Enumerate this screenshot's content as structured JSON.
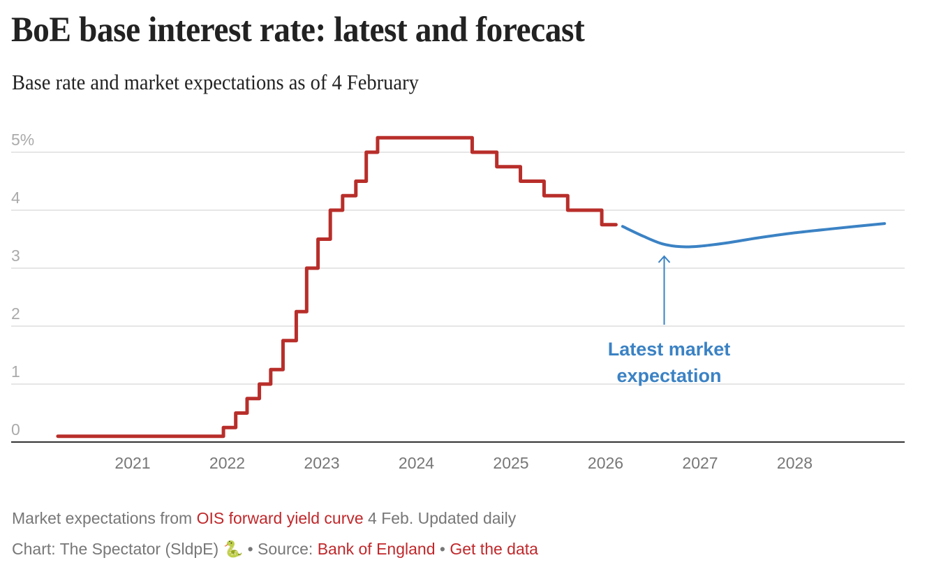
{
  "header": {
    "title": "BoE base interest rate: latest and forecast",
    "subtitle": "Base rate and market expectations as of 4 February"
  },
  "chart_data": {
    "type": "line",
    "title": "BoE base interest rate: latest and forecast",
    "subtitle": "Base rate and market expectations as of 4 February",
    "xlabel": "",
    "ylabel": "",
    "ylim": [
      0,
      5
    ],
    "xlim": [
      2020.0,
      2029.0
    ],
    "y_ticks": [
      {
        "value": 0,
        "label": "0"
      },
      {
        "value": 1,
        "label": "1"
      },
      {
        "value": 2,
        "label": "2"
      },
      {
        "value": 3,
        "label": "3"
      },
      {
        "value": 4,
        "label": "4"
      },
      {
        "value": 5,
        "label": "5%"
      }
    ],
    "x_ticks": [
      {
        "value": 2021,
        "label": "2021"
      },
      {
        "value": 2022,
        "label": "2022"
      },
      {
        "value": 2023,
        "label": "2023"
      },
      {
        "value": 2024,
        "label": "2024"
      },
      {
        "value": 2025,
        "label": "2025"
      },
      {
        "value": 2026,
        "label": "2026"
      },
      {
        "value": 2027,
        "label": "2027"
      },
      {
        "value": 2028,
        "label": "2028"
      }
    ],
    "grid": true,
    "legend": "none",
    "series": [
      {
        "name": "Base rate",
        "style": "step",
        "color": "#b82e2a",
        "points": [
          {
            "x": 2020.21,
            "y": 0.1
          },
          {
            "x": 2021.96,
            "y": 0.25
          },
          {
            "x": 2022.09,
            "y": 0.5
          },
          {
            "x": 2022.21,
            "y": 0.75
          },
          {
            "x": 2022.34,
            "y": 1.0
          },
          {
            "x": 2022.46,
            "y": 1.25
          },
          {
            "x": 2022.59,
            "y": 1.75
          },
          {
            "x": 2022.73,
            "y": 2.25
          },
          {
            "x": 2022.84,
            "y": 3.0
          },
          {
            "x": 2022.96,
            "y": 3.5
          },
          {
            "x": 2023.09,
            "y": 4.0
          },
          {
            "x": 2023.22,
            "y": 4.25
          },
          {
            "x": 2023.36,
            "y": 4.5
          },
          {
            "x": 2023.47,
            "y": 5.0
          },
          {
            "x": 2023.59,
            "y": 5.25
          },
          {
            "x": 2024.59,
            "y": 5.0
          },
          {
            "x": 2024.85,
            "y": 4.75
          },
          {
            "x": 2025.1,
            "y": 4.5
          },
          {
            "x": 2025.35,
            "y": 4.25
          },
          {
            "x": 2025.6,
            "y": 4.0
          },
          {
            "x": 2025.96,
            "y": 3.75
          }
        ],
        "end_x": 2026.11
      },
      {
        "name": "Latest market expectation",
        "style": "smooth",
        "color": "#3b82c4",
        "points": [
          {
            "x": 2026.18,
            "y": 3.72
          },
          {
            "x": 2026.4,
            "y": 3.55
          },
          {
            "x": 2026.6,
            "y": 3.42
          },
          {
            "x": 2026.8,
            "y": 3.37
          },
          {
            "x": 2027.0,
            "y": 3.38
          },
          {
            "x": 2027.3,
            "y": 3.44
          },
          {
            "x": 2027.6,
            "y": 3.52
          },
          {
            "x": 2028.0,
            "y": 3.61
          },
          {
            "x": 2028.4,
            "y": 3.68
          },
          {
            "x": 2028.95,
            "y": 3.77
          }
        ]
      }
    ],
    "annotations": [
      {
        "text_lines": [
          "Latest market",
          "expectation"
        ],
        "points_to": {
          "x": 2026.62,
          "y": 3.35
        },
        "color": "#3b82c4"
      }
    ]
  },
  "footer": {
    "notes_prefix": "Market expectations from ",
    "notes_link": "OIS forward yield curve",
    "notes_suffix": " 4 Feb. Updated daily",
    "credit_prefix": "Chart: The Spectator (SldpE) ",
    "credit_icon": "🐍",
    "credit_source_label": " • Source: ",
    "credit_source_link": "Bank of England",
    "separator": " • ",
    "get_data_link": "Get the data"
  },
  "colors": {
    "base_rate": "#b82e2a",
    "expectation": "#3b82c4",
    "link": "#c0282b",
    "grid": "#e6e6e6",
    "axis": "#333333"
  }
}
